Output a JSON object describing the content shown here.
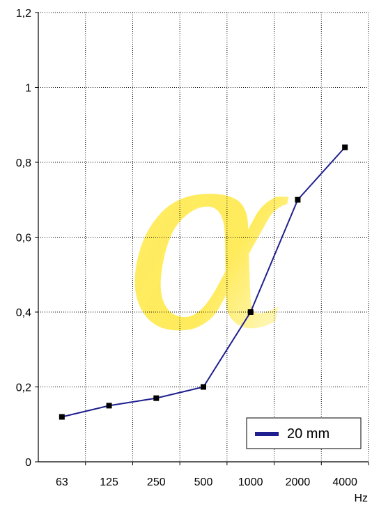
{
  "chart_data": {
    "type": "line",
    "title": "",
    "xlabel": "Hz",
    "ylabel": "",
    "categories": [
      "63",
      "125",
      "250",
      "500",
      "1000",
      "2000",
      "4000"
    ],
    "ylim": [
      0,
      1.2
    ],
    "yticks": [
      "0",
      "0,2",
      "0,4",
      "0,6",
      "0,8",
      "1",
      "1,2"
    ],
    "grid": true,
    "legend_position": "bottom-right",
    "series": [
      {
        "name": "20 mm",
        "color": "#1f1f8f",
        "values": [
          0.12,
          0.15,
          0.17,
          0.2,
          0.4,
          0.7,
          0.84
        ]
      }
    ],
    "watermark_symbol": "α",
    "watermark_color": "#ffe000"
  }
}
